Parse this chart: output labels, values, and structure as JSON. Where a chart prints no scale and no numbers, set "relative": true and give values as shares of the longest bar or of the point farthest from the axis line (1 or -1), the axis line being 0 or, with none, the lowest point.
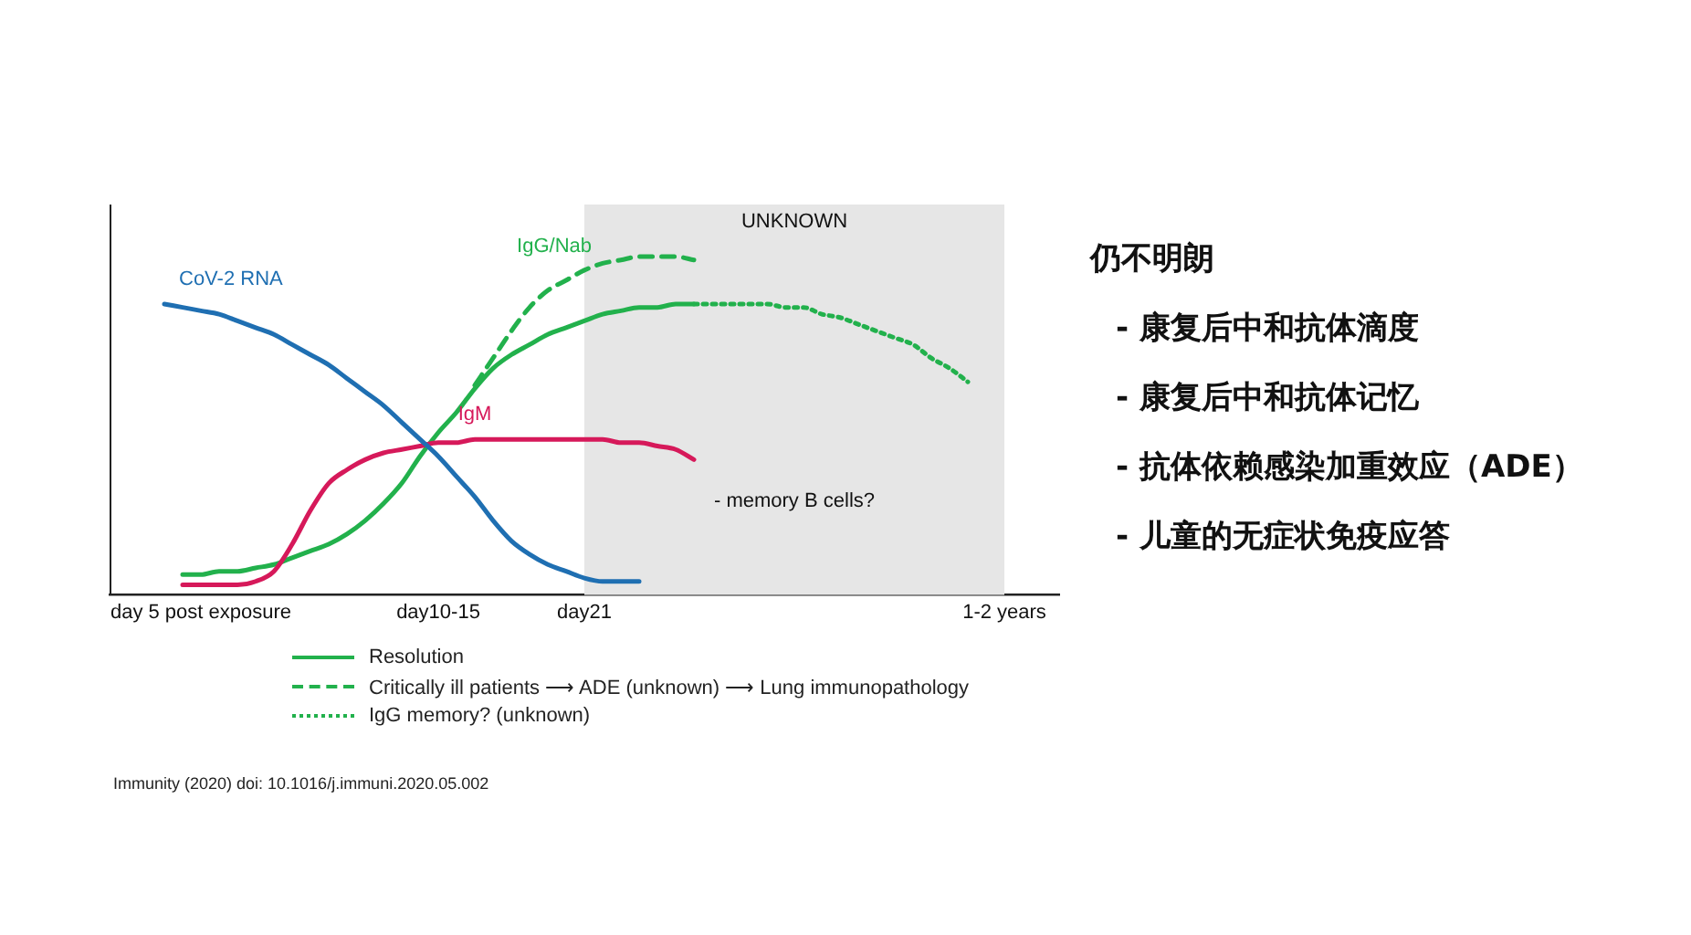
{
  "chart_data": {
    "type": "line",
    "relative": true,
    "legend": "bottom",
    "grid": false,
    "tick_labels": "x",
    "marker": "none",
    "categories": [
      null,
      null,
      null,
      null,
      null,
      "day 5 post exposure",
      null,
      null,
      null,
      null,
      null,
      null,
      null,
      null,
      null,
      null,
      null,
      null,
      "day10-15",
      null,
      null,
      null,
      null,
      null,
      null,
      null,
      "day21",
      null,
      null,
      null,
      null,
      null,
      null,
      null,
      null,
      null,
      null,
      null,
      null,
      null,
      null,
      null,
      null,
      null,
      null,
      null,
      null,
      null,
      null,
      "1-2 years",
      null,
      null,
      null
    ],
    "series": [
      {
        "name": "CoV-2 RNA",
        "color": "#1f6fb2",
        "values": [
          null,
          null,
          null,
          0.86,
          0.85,
          0.84,
          0.83,
          0.81,
          0.79,
          0.77,
          0.74,
          0.71,
          0.68,
          0.64,
          0.6,
          0.56,
          0.51,
          0.46,
          0.41,
          0.35,
          0.29,
          0.22,
          0.16,
          0.12,
          0.09,
          0.07,
          0.05,
          0.04,
          0.04,
          0.04,
          null,
          null,
          null,
          null,
          null,
          null,
          null,
          null,
          null,
          null,
          null,
          null,
          null,
          null,
          null,
          null,
          null,
          null,
          null,
          null,
          null,
          null,
          null
        ]
      },
      {
        "name": "IgM",
        "color": "#d6195a",
        "values": [
          null,
          null,
          null,
          null,
          0.03,
          0.03,
          0.03,
          0.03,
          0.04,
          0.07,
          0.15,
          0.25,
          0.33,
          0.37,
          0.4,
          0.42,
          0.43,
          0.44,
          0.45,
          0.45,
          0.46,
          0.46,
          0.46,
          0.46,
          0.46,
          0.46,
          0.46,
          0.46,
          0.45,
          0.45,
          0.44,
          0.43,
          0.4,
          null,
          null,
          null,
          null,
          null,
          null,
          null,
          null,
          null,
          null,
          null,
          null,
          null,
          null,
          null,
          null,
          null,
          null,
          null,
          null
        ]
      },
      {
        "name": "Resolution",
        "color": "#22b14c",
        "line_style": "solid",
        "values": [
          null,
          null,
          null,
          null,
          0.06,
          0.06,
          0.07,
          0.07,
          0.08,
          0.09,
          0.11,
          0.13,
          0.15,
          0.18,
          0.22,
          0.27,
          0.33,
          0.41,
          0.48,
          0.54,
          0.61,
          0.67,
          0.71,
          0.74,
          0.77,
          0.79,
          0.81,
          0.83,
          0.84,
          0.85,
          0.85,
          0.86,
          0.86,
          null,
          null,
          null,
          null,
          null,
          null,
          null,
          null,
          null,
          null,
          null,
          null,
          null,
          null,
          null,
          null,
          null,
          null,
          null,
          null
        ]
      },
      {
        "name": "Critically ill patients ⟶ ADE (unknown) ⟶ Lung immunopathology",
        "color": "#22b14c",
        "line_style": "dashed",
        "values": [
          null,
          null,
          null,
          null,
          null,
          null,
          null,
          null,
          null,
          null,
          null,
          null,
          null,
          null,
          null,
          null,
          null,
          null,
          null,
          null,
          0.62,
          0.7,
          0.78,
          0.85,
          0.9,
          0.93,
          0.96,
          0.98,
          0.99,
          1,
          1,
          1,
          0.99,
          null,
          null,
          null,
          null,
          null,
          null,
          null,
          null,
          null,
          null,
          null,
          null,
          null,
          null,
          null,
          null,
          null,
          null,
          null,
          null
        ]
      },
      {
        "name": "IgG memory? (unknown)",
        "color": "#22b14c",
        "line_style": "dotted",
        "values": [
          null,
          null,
          null,
          null,
          null,
          null,
          null,
          null,
          null,
          null,
          null,
          null,
          null,
          null,
          null,
          null,
          null,
          null,
          null,
          null,
          null,
          null,
          null,
          null,
          null,
          null,
          null,
          null,
          null,
          null,
          null,
          null,
          0.86,
          0.86,
          0.86,
          0.86,
          0.86,
          0.85,
          0.85,
          0.83,
          0.82,
          0.8,
          0.78,
          0.76,
          0.74,
          0.7,
          0.67,
          0.63,
          null,
          null,
          null,
          null,
          null
        ]
      }
    ],
    "bands": [
      {
        "axis": "x",
        "from": "day21",
        "to": "1-2 years",
        "label": "UNKNOWN",
        "color": "#e6e6e6"
      }
    ],
    "annotations": [
      "- memory B cells?",
      "IgG/Nab",
      "Immunity (2020) doi: 10.1016/j.immuni.2020.05.002",
      "仍不明朗",
      "- 康复后中和抗体滴度",
      "- 康复后中和抗体记忆",
      "- 抗体依赖感染加重效应（ADE）",
      "- 儿童的无症状免疫应答"
    ]
  }
}
